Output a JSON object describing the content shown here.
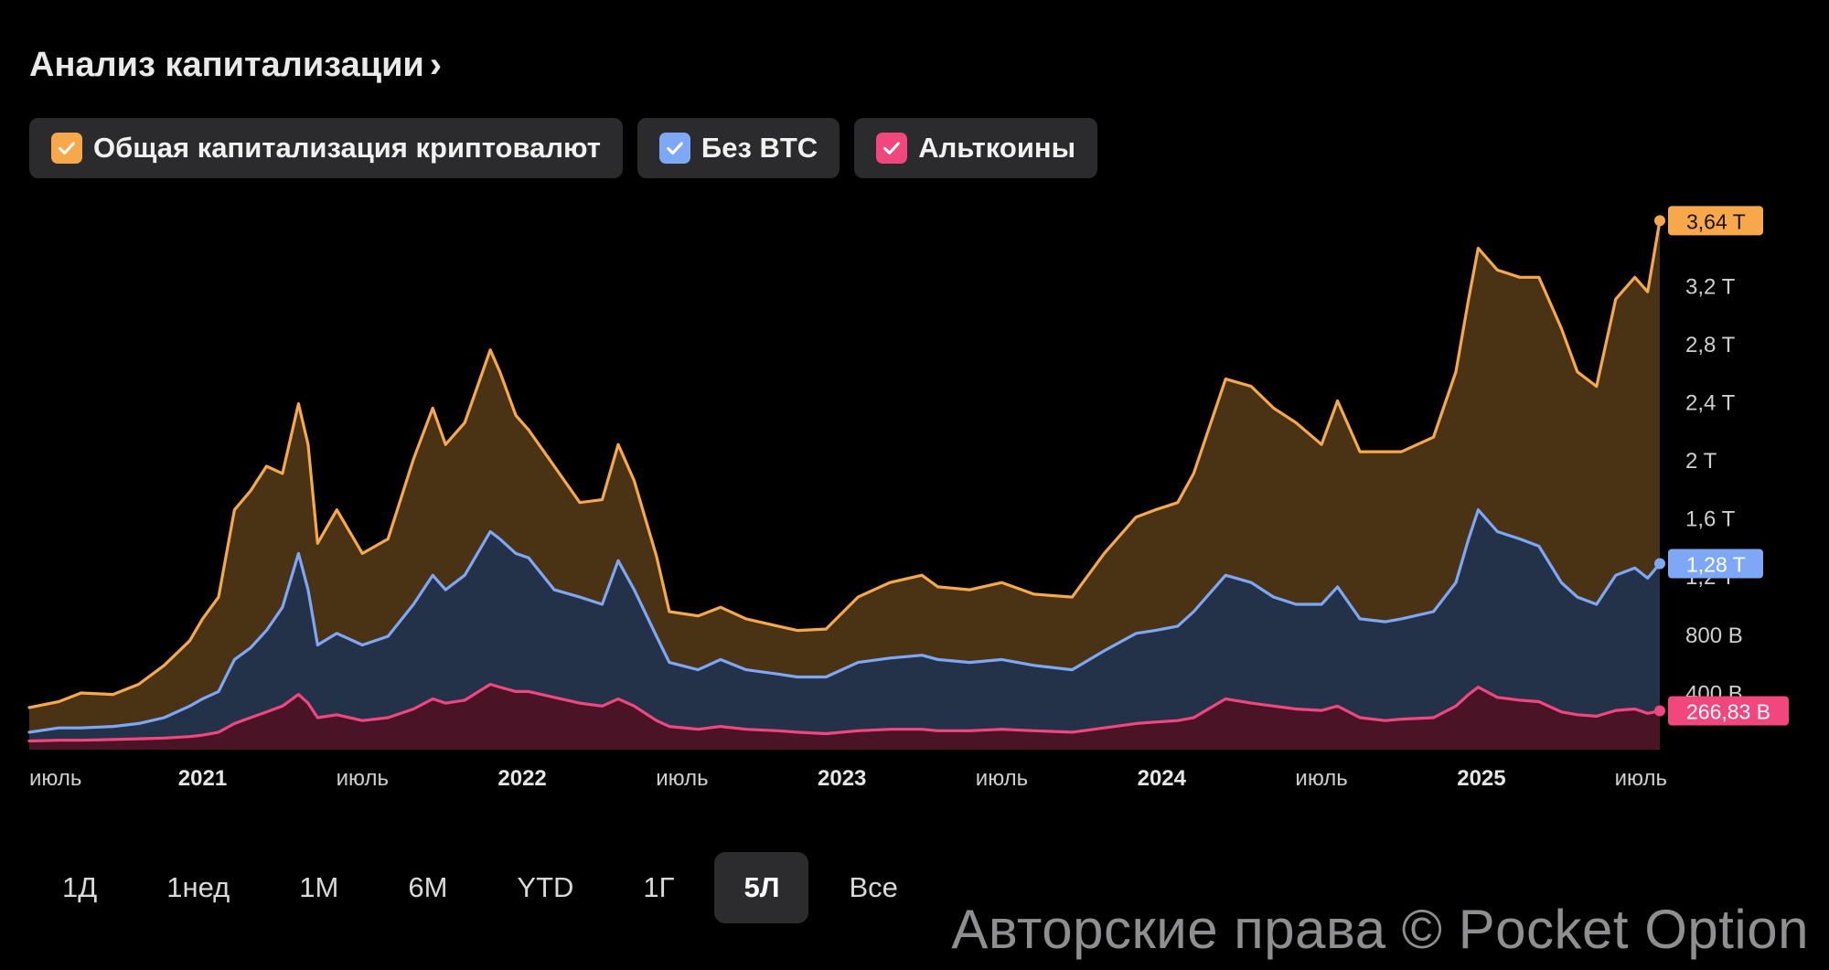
{
  "header": {
    "title": "Анализ капитализации",
    "chevron": "›"
  },
  "legend": [
    {
      "label": "Общая капитализация криптовалют",
      "color": "#f7a84b",
      "checked": true,
      "icon": "check-icon"
    },
    {
      "label": "Без BTC",
      "color": "#7ea7f6",
      "checked": true,
      "icon": "check-icon"
    },
    {
      "label": "Альткоины",
      "color": "#f2467f",
      "checked": true,
      "icon": "check-icon"
    }
  ],
  "chart_data": {
    "type": "area",
    "x_range": [
      2020.458,
      2025.558
    ],
    "ylim": [
      0,
      3900000000000
    ],
    "x_ticks": [
      {
        "label": "июль",
        "x": 2020.5,
        "bold": false
      },
      {
        "label": "2021",
        "x": 2021.0,
        "bold": true
      },
      {
        "label": "июль",
        "x": 2021.5,
        "bold": false
      },
      {
        "label": "2022",
        "x": 2022.0,
        "bold": true
      },
      {
        "label": "июль",
        "x": 2022.5,
        "bold": false
      },
      {
        "label": "2023",
        "x": 2023.0,
        "bold": true
      },
      {
        "label": "июль",
        "x": 2023.5,
        "bold": false
      },
      {
        "label": "2024",
        "x": 2024.0,
        "bold": true
      },
      {
        "label": "июль",
        "x": 2024.5,
        "bold": false
      },
      {
        "label": "2025",
        "x": 2025.0,
        "bold": true
      },
      {
        "label": "июль",
        "x": 2025.5,
        "bold": false
      }
    ],
    "y_ticks": [
      {
        "label": "400 B",
        "value": 400000000000
      },
      {
        "label": "800 B",
        "value": 800000000000
      },
      {
        "label": "1,2 T",
        "value": 1200000000000
      },
      {
        "label": "1,6 T",
        "value": 1600000000000
      },
      {
        "label": "2 T",
        "value": 2000000000000
      },
      {
        "label": "2,4 T",
        "value": 2400000000000
      },
      {
        "label": "2,8 T",
        "value": 2800000000000
      },
      {
        "label": "3,2 T",
        "value": 3200000000000
      }
    ],
    "series": [
      {
        "name": "Общая капитализация криптовалют",
        "color": "#f7a84b",
        "fill": "#4a3214",
        "last_value_label": "3,64 T",
        "points": [
          [
            2020.458,
            0.29
          ],
          [
            2020.55,
            0.33
          ],
          [
            2020.62,
            0.39
          ],
          [
            2020.72,
            0.38
          ],
          [
            2020.8,
            0.45
          ],
          [
            2020.88,
            0.58
          ],
          [
            2020.96,
            0.75
          ],
          [
            2021.0,
            0.9
          ],
          [
            2021.05,
            1.05
          ],
          [
            2021.1,
            1.65
          ],
          [
            2021.15,
            1.78
          ],
          [
            2021.2,
            1.95
          ],
          [
            2021.25,
            1.9
          ],
          [
            2021.3,
            2.38
          ],
          [
            2021.33,
            2.1
          ],
          [
            2021.36,
            1.42
          ],
          [
            2021.42,
            1.65
          ],
          [
            2021.5,
            1.35
          ],
          [
            2021.58,
            1.45
          ],
          [
            2021.66,
            2.0
          ],
          [
            2021.72,
            2.35
          ],
          [
            2021.76,
            2.1
          ],
          [
            2021.82,
            2.25
          ],
          [
            2021.9,
            2.75
          ],
          [
            2021.93,
            2.6
          ],
          [
            2021.98,
            2.3
          ],
          [
            2022.02,
            2.2
          ],
          [
            2022.1,
            1.95
          ],
          [
            2022.18,
            1.7
          ],
          [
            2022.25,
            1.72
          ],
          [
            2022.3,
            2.1
          ],
          [
            2022.35,
            1.85
          ],
          [
            2022.42,
            1.33
          ],
          [
            2022.46,
            0.95
          ],
          [
            2022.55,
            0.92
          ],
          [
            2022.62,
            0.98
          ],
          [
            2022.7,
            0.9
          ],
          [
            2022.8,
            0.85
          ],
          [
            2022.86,
            0.82
          ],
          [
            2022.95,
            0.83
          ],
          [
            2023.05,
            1.05
          ],
          [
            2023.15,
            1.15
          ],
          [
            2023.25,
            1.2
          ],
          [
            2023.3,
            1.12
          ],
          [
            2023.4,
            1.1
          ],
          [
            2023.5,
            1.15
          ],
          [
            2023.6,
            1.07
          ],
          [
            2023.72,
            1.05
          ],
          [
            2023.82,
            1.35
          ],
          [
            2023.92,
            1.6
          ],
          [
            2023.98,
            1.65
          ],
          [
            2024.05,
            1.7
          ],
          [
            2024.1,
            1.9
          ],
          [
            2024.2,
            2.55
          ],
          [
            2024.28,
            2.5
          ],
          [
            2024.35,
            2.35
          ],
          [
            2024.42,
            2.25
          ],
          [
            2024.5,
            2.1
          ],
          [
            2024.55,
            2.4
          ],
          [
            2024.62,
            2.05
          ],
          [
            2024.7,
            2.05
          ],
          [
            2024.75,
            2.05
          ],
          [
            2024.85,
            2.15
          ],
          [
            2024.92,
            2.6
          ],
          [
            2024.96,
            3.1
          ],
          [
            2024.99,
            3.45
          ],
          [
            2025.05,
            3.3
          ],
          [
            2025.12,
            3.25
          ],
          [
            2025.18,
            3.25
          ],
          [
            2025.25,
            2.9
          ],
          [
            2025.3,
            2.6
          ],
          [
            2025.36,
            2.5
          ],
          [
            2025.42,
            3.1
          ],
          [
            2025.48,
            3.25
          ],
          [
            2025.52,
            3.15
          ],
          [
            2025.558,
            3.64
          ]
        ]
      },
      {
        "name": "Без BTC",
        "color": "#7ea7f6",
        "fill": "#233149",
        "last_value_label": "1,28 T",
        "points": [
          [
            2020.458,
            0.12
          ],
          [
            2020.55,
            0.15
          ],
          [
            2020.62,
            0.15
          ],
          [
            2020.72,
            0.16
          ],
          [
            2020.8,
            0.18
          ],
          [
            2020.88,
            0.22
          ],
          [
            2020.96,
            0.3
          ],
          [
            2021.0,
            0.35
          ],
          [
            2021.05,
            0.4
          ],
          [
            2021.1,
            0.62
          ],
          [
            2021.15,
            0.7
          ],
          [
            2021.2,
            0.82
          ],
          [
            2021.25,
            0.98
          ],
          [
            2021.3,
            1.35
          ],
          [
            2021.33,
            1.1
          ],
          [
            2021.36,
            0.72
          ],
          [
            2021.42,
            0.8
          ],
          [
            2021.5,
            0.72
          ],
          [
            2021.58,
            0.78
          ],
          [
            2021.66,
            1.0
          ],
          [
            2021.72,
            1.2
          ],
          [
            2021.76,
            1.1
          ],
          [
            2021.82,
            1.2
          ],
          [
            2021.9,
            1.5
          ],
          [
            2021.93,
            1.45
          ],
          [
            2021.98,
            1.35
          ],
          [
            2022.02,
            1.32
          ],
          [
            2022.1,
            1.1
          ],
          [
            2022.18,
            1.05
          ],
          [
            2022.25,
            1.0
          ],
          [
            2022.3,
            1.3
          ],
          [
            2022.35,
            1.1
          ],
          [
            2022.42,
            0.78
          ],
          [
            2022.46,
            0.6
          ],
          [
            2022.55,
            0.55
          ],
          [
            2022.62,
            0.62
          ],
          [
            2022.7,
            0.55
          ],
          [
            2022.8,
            0.52
          ],
          [
            2022.86,
            0.5
          ],
          [
            2022.95,
            0.5
          ],
          [
            2023.05,
            0.6
          ],
          [
            2023.15,
            0.63
          ],
          [
            2023.25,
            0.65
          ],
          [
            2023.3,
            0.62
          ],
          [
            2023.4,
            0.6
          ],
          [
            2023.5,
            0.62
          ],
          [
            2023.6,
            0.58
          ],
          [
            2023.72,
            0.55
          ],
          [
            2023.82,
            0.68
          ],
          [
            2023.92,
            0.8
          ],
          [
            2023.98,
            0.82
          ],
          [
            2024.05,
            0.85
          ],
          [
            2024.1,
            0.95
          ],
          [
            2024.2,
            1.2
          ],
          [
            2024.28,
            1.15
          ],
          [
            2024.35,
            1.05
          ],
          [
            2024.42,
            1.0
          ],
          [
            2024.5,
            1.0
          ],
          [
            2024.55,
            1.12
          ],
          [
            2024.62,
            0.9
          ],
          [
            2024.7,
            0.88
          ],
          [
            2024.75,
            0.9
          ],
          [
            2024.85,
            0.95
          ],
          [
            2024.92,
            1.15
          ],
          [
            2024.96,
            1.45
          ],
          [
            2024.99,
            1.65
          ],
          [
            2025.05,
            1.5
          ],
          [
            2025.12,
            1.45
          ],
          [
            2025.18,
            1.4
          ],
          [
            2025.25,
            1.15
          ],
          [
            2025.3,
            1.05
          ],
          [
            2025.36,
            1.0
          ],
          [
            2025.42,
            1.2
          ],
          [
            2025.48,
            1.25
          ],
          [
            2025.52,
            1.18
          ],
          [
            2025.558,
            1.28
          ]
        ]
      },
      {
        "name": "Альткоины",
        "color": "#f2467f",
        "fill": "#4a1426",
        "last_value_label": "266,83 B",
        "points": [
          [
            2020.458,
            0.06
          ],
          [
            2020.55,
            0.065
          ],
          [
            2020.62,
            0.065
          ],
          [
            2020.72,
            0.07
          ],
          [
            2020.8,
            0.075
          ],
          [
            2020.88,
            0.08
          ],
          [
            2020.96,
            0.09
          ],
          [
            2021.0,
            0.1
          ],
          [
            2021.05,
            0.12
          ],
          [
            2021.1,
            0.18
          ],
          [
            2021.15,
            0.22
          ],
          [
            2021.2,
            0.26
          ],
          [
            2021.25,
            0.3
          ],
          [
            2021.3,
            0.38
          ],
          [
            2021.33,
            0.32
          ],
          [
            2021.36,
            0.22
          ],
          [
            2021.42,
            0.24
          ],
          [
            2021.5,
            0.2
          ],
          [
            2021.58,
            0.22
          ],
          [
            2021.66,
            0.28
          ],
          [
            2021.72,
            0.35
          ],
          [
            2021.76,
            0.32
          ],
          [
            2021.82,
            0.34
          ],
          [
            2021.9,
            0.45
          ],
          [
            2021.93,
            0.43
          ],
          [
            2021.98,
            0.4
          ],
          [
            2022.02,
            0.4
          ],
          [
            2022.1,
            0.36
          ],
          [
            2022.18,
            0.32
          ],
          [
            2022.25,
            0.3
          ],
          [
            2022.3,
            0.35
          ],
          [
            2022.35,
            0.3
          ],
          [
            2022.42,
            0.2
          ],
          [
            2022.46,
            0.16
          ],
          [
            2022.55,
            0.14
          ],
          [
            2022.62,
            0.16
          ],
          [
            2022.7,
            0.14
          ],
          [
            2022.8,
            0.13
          ],
          [
            2022.86,
            0.12
          ],
          [
            2022.95,
            0.11
          ],
          [
            2023.05,
            0.13
          ],
          [
            2023.15,
            0.14
          ],
          [
            2023.25,
            0.14
          ],
          [
            2023.3,
            0.13
          ],
          [
            2023.4,
            0.13
          ],
          [
            2023.5,
            0.14
          ],
          [
            2023.6,
            0.13
          ],
          [
            2023.72,
            0.12
          ],
          [
            2023.82,
            0.15
          ],
          [
            2023.92,
            0.18
          ],
          [
            2023.98,
            0.19
          ],
          [
            2024.05,
            0.2
          ],
          [
            2024.1,
            0.22
          ],
          [
            2024.2,
            0.35
          ],
          [
            2024.28,
            0.32
          ],
          [
            2024.35,
            0.3
          ],
          [
            2024.42,
            0.28
          ],
          [
            2024.5,
            0.27
          ],
          [
            2024.55,
            0.3
          ],
          [
            2024.62,
            0.22
          ],
          [
            2024.7,
            0.2
          ],
          [
            2024.75,
            0.21
          ],
          [
            2024.85,
            0.22
          ],
          [
            2024.92,
            0.3
          ],
          [
            2024.96,
            0.38
          ],
          [
            2024.99,
            0.43
          ],
          [
            2025.05,
            0.36
          ],
          [
            2025.12,
            0.34
          ],
          [
            2025.18,
            0.33
          ],
          [
            2025.25,
            0.26
          ],
          [
            2025.3,
            0.24
          ],
          [
            2025.36,
            0.23
          ],
          [
            2025.42,
            0.27
          ],
          [
            2025.48,
            0.28
          ],
          [
            2025.52,
            0.25
          ],
          [
            2025.558,
            0.267
          ]
        ]
      }
    ]
  },
  "ranges": {
    "items": [
      "1Д",
      "1нед",
      "1M",
      "6M",
      "YTD",
      "1Г",
      "5Л",
      "Все"
    ],
    "active_index": 6
  },
  "watermark": "Авторские права © Pocket Option"
}
